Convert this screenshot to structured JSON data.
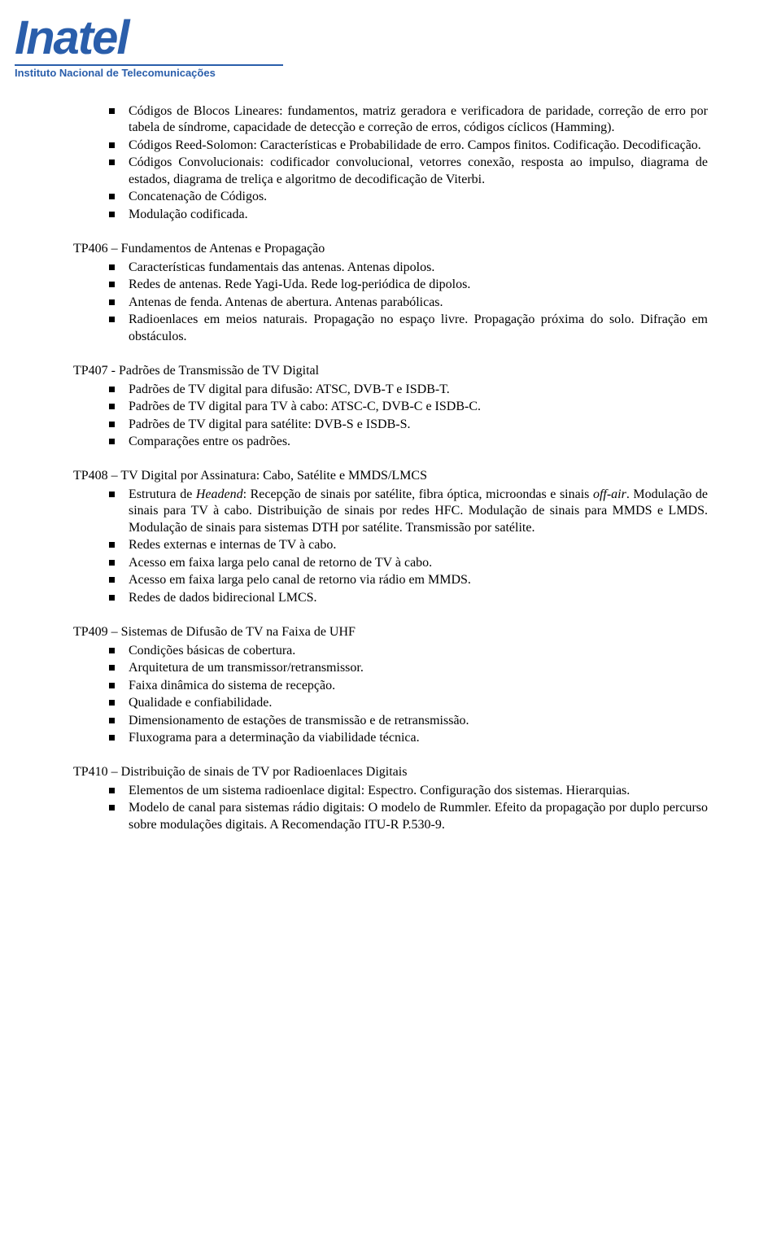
{
  "logo": {
    "main": "Inatel",
    "sub": "Instituto Nacional de Telecomunicações",
    "color": "#2a5eab"
  },
  "sections": [
    {
      "title": "",
      "items": [
        "Códigos de Blocos Lineares: fundamentos, matriz geradora e verificadora de paridade, correção de erro por tabela de síndrome, capacidade de detecção e correção de erros, códigos cíclicos (Hamming).",
        "Códigos Reed-Solomon: Características e Probabilidade de erro. Campos finitos. Codificação. Decodificação.",
        "Códigos Convolucionais: codificador convolucional, vetorres conexão, resposta ao impulso, diagrama de estados, diagrama de treliça e algoritmo de decodificação de Viterbi.",
        "Concatenação de Códigos.",
        "Modulação codificada."
      ]
    },
    {
      "title": "TP406 – Fundamentos de Antenas e Propagação",
      "items": [
        "Características fundamentais das antenas. Antenas dipolos.",
        "Redes de antenas. Rede Yagi-Uda. Rede log-periódica de dipolos.",
        "Antenas de fenda. Antenas de abertura. Antenas parabólicas.",
        "Radioenlaces em meios naturais. Propagação no espaço livre. Propagação próxima do solo. Difração em obstáculos."
      ]
    },
    {
      "title": "TP407 - Padrões de Transmissão de TV Digital",
      "items": [
        "Padrões de TV digital para difusão: ATSC, DVB-T e ISDB-T.",
        "Padrões de TV digital para TV à cabo: ATSC-C, DVB-C e ISDB-C.",
        "Padrões de TV digital para satélite: DVB-S e ISDB-S.",
        "Comparações entre os padrões."
      ]
    },
    {
      "title": "TP408 – TV Digital por Assinatura: Cabo, Satélite e MMDS/LMCS",
      "items": [
        "Estrutura de <span class=\"italic\">Headend</span>: Recepção de sinais por satélite, fibra óptica, microondas e sinais <span class=\"italic\">off-air</span>. Modulação de sinais para TV à cabo. Distribuição de sinais por redes HFC. Modulação de sinais para MMDS e LMDS. Modulação de sinais para sistemas DTH por satélite. Transmissão por satélite.",
        "Redes externas e internas de TV à cabo.",
        "Acesso em faixa larga pelo canal de retorno de TV à cabo.",
        "Acesso em faixa larga pelo canal de retorno via rádio em MMDS.",
        "Redes de dados bidirecional LMCS."
      ]
    },
    {
      "title": "TP409 – Sistemas de Difusão de TV na Faixa de UHF",
      "items": [
        "Condições básicas de cobertura.",
        "Arquitetura de um transmissor/retransmissor.",
        "Faixa dinâmica do sistema de recepção.",
        "Qualidade e confiabilidade.",
        "Dimensionamento de estações de transmissão e de retransmissão.",
        "Fluxograma para a determinação da viabilidade técnica."
      ]
    },
    {
      "title": "TP410 – Distribuição de sinais de TV por Radioenlaces Digitais",
      "items": [
        "Elementos de um sistema radioenlace digital: Espectro. Configuração dos sistemas. Hierarquias.",
        "Modelo de canal para sistemas rádio digitais: O modelo de Rummler. Efeito da propagação por duplo percurso sobre modulações digitais. A Recomendação ITU-R P.530-9."
      ]
    }
  ]
}
